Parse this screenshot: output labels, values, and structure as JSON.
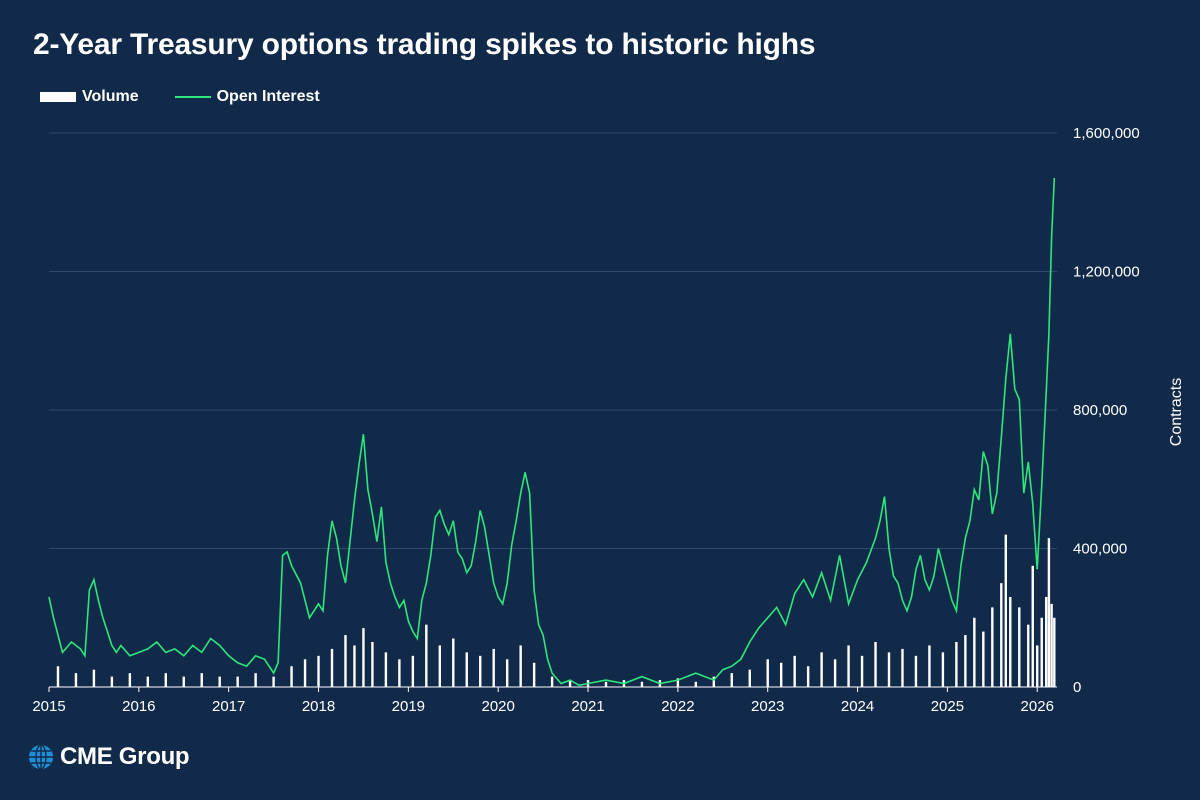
{
  "title": "2-Year Treasury options trading spikes to historic highs",
  "legend": {
    "volume": "Volume",
    "open_interest": "Open Interest"
  },
  "logo": {
    "text": "CME Group",
    "icon": "globe-icon"
  },
  "colors": {
    "background": "#122a4a",
    "volume": "#ffffff",
    "open_interest": "#2ee67a",
    "grid": "#2f4a6e"
  },
  "chart_data": {
    "type": "line",
    "title": "2-Year Treasury options trading spikes to historic highs",
    "xlabel": "",
    "ylabel": "Contracts",
    "x_ticks": [
      "2015",
      "2016",
      "2017",
      "2018",
      "2019",
      "2020",
      "2021",
      "2022",
      "2023",
      "2024",
      "2025",
      "2026"
    ],
    "xlim": [
      2015.0,
      2026.22
    ],
    "ylim": [
      0,
      1600000
    ],
    "y_ticks": [
      0,
      400000,
      800000,
      1200000,
      1600000
    ],
    "y_tick_labels": [
      "0",
      "400,000",
      "800,000",
      "1,200,000",
      "1,600,000"
    ],
    "y_axis_side": "right",
    "grid": true,
    "legend_position": "top-left",
    "series": [
      {
        "name": "Open Interest",
        "kind": "line",
        "x": [
          2015.0,
          2015.05,
          2015.1,
          2015.15,
          2015.25,
          2015.3,
          2015.35,
          2015.4,
          2015.45,
          2015.5,
          2015.55,
          2015.6,
          2015.65,
          2015.7,
          2015.75,
          2015.8,
          2015.9,
          2016.0,
          2016.1,
          2016.2,
          2016.3,
          2016.4,
          2016.5,
          2016.6,
          2016.7,
          2016.8,
          2016.9,
          2017.0,
          2017.1,
          2017.2,
          2017.3,
          2017.4,
          2017.5,
          2017.55,
          2017.6,
          2017.65,
          2017.7,
          2017.8,
          2017.9,
          2018.0,
          2018.05,
          2018.1,
          2018.15,
          2018.2,
          2018.25,
          2018.3,
          2018.35,
          2018.4,
          2018.45,
          2018.5,
          2018.55,
          2018.6,
          2018.65,
          2018.7,
          2018.75,
          2018.8,
          2018.85,
          2018.9,
          2018.95,
          2019.0,
          2019.05,
          2019.1,
          2019.15,
          2019.2,
          2019.25,
          2019.3,
          2019.35,
          2019.4,
          2019.45,
          2019.5,
          2019.55,
          2019.6,
          2019.65,
          2019.7,
          2019.75,
          2019.8,
          2019.85,
          2019.9,
          2019.95,
          2020.0,
          2020.05,
          2020.1,
          2020.15,
          2020.2,
          2020.25,
          2020.3,
          2020.35,
          2020.4,
          2020.45,
          2020.5,
          2020.55,
          2020.6,
          2020.7,
          2020.8,
          2020.9,
          2021.0,
          2021.2,
          2021.4,
          2021.6,
          2021.8,
          2022.0,
          2022.2,
          2022.4,
          2022.5,
          2022.6,
          2022.7,
          2022.8,
          2022.9,
          2023.0,
          2023.1,
          2023.2,
          2023.3,
          2023.4,
          2023.5,
          2023.6,
          2023.7,
          2023.8,
          2023.9,
          2024.0,
          2024.1,
          2024.2,
          2024.25,
          2024.3,
          2024.35,
          2024.4,
          2024.45,
          2024.5,
          2024.55,
          2024.6,
          2024.65,
          2024.7,
          2024.75,
          2024.8,
          2024.85,
          2024.9,
          2024.95,
          2025.0,
          2025.05,
          2025.1,
          2025.15,
          2025.2,
          2025.25,
          2025.3,
          2025.35,
          2025.4,
          2025.45,
          2025.5,
          2025.55,
          2025.6,
          2025.65,
          2025.7,
          2025.75,
          2025.8,
          2025.85,
          2025.9,
          2025.95,
          2026.0,
          2026.05,
          2026.1,
          2026.13,
          2026.16,
          2026.19
        ],
        "values": [
          260000,
          200000,
          150000,
          100000,
          130000,
          120000,
          110000,
          90000,
          280000,
          310000,
          250000,
          200000,
          160000,
          120000,
          100000,
          120000,
          90000,
          100000,
          110000,
          130000,
          100000,
          110000,
          90000,
          120000,
          100000,
          140000,
          120000,
          90000,
          70000,
          60000,
          90000,
          80000,
          40000,
          70000,
          380000,
          390000,
          350000,
          300000,
          200000,
          240000,
          220000,
          380000,
          480000,
          430000,
          350000,
          300000,
          420000,
          540000,
          640000,
          730000,
          570000,
          500000,
          420000,
          520000,
          360000,
          300000,
          260000,
          230000,
          250000,
          190000,
          160000,
          140000,
          250000,
          300000,
          380000,
          490000,
          510000,
          470000,
          440000,
          480000,
          390000,
          370000,
          330000,
          350000,
          420000,
          510000,
          460000,
          380000,
          300000,
          260000,
          240000,
          300000,
          410000,
          480000,
          560000,
          620000,
          560000,
          280000,
          180000,
          150000,
          80000,
          40000,
          10000,
          20000,
          5000,
          10000,
          20000,
          10000,
          30000,
          10000,
          20000,
          40000,
          20000,
          50000,
          60000,
          80000,
          130000,
          170000,
          200000,
          230000,
          180000,
          270000,
          310000,
          260000,
          330000,
          250000,
          380000,
          240000,
          310000,
          360000,
          430000,
          480000,
          550000,
          400000,
          320000,
          300000,
          250000,
          220000,
          260000,
          340000,
          380000,
          310000,
          280000,
          320000,
          400000,
          350000,
          300000,
          250000,
          220000,
          350000,
          430000,
          480000,
          570000,
          540000,
          680000,
          640000,
          500000,
          560000,
          720000,
          890000,
          1020000,
          860000,
          830000,
          560000,
          650000,
          530000,
          340000,
          580000,
          850000,
          1020000,
          1300000,
          1470000
        ]
      },
      {
        "name": "Volume",
        "kind": "bar",
        "x": [
          2015.1,
          2015.3,
          2015.5,
          2015.7,
          2015.9,
          2016.1,
          2016.3,
          2016.5,
          2016.7,
          2016.9,
          2017.1,
          2017.3,
          2017.5,
          2017.7,
          2017.85,
          2018.0,
          2018.15,
          2018.3,
          2018.4,
          2018.5,
          2018.6,
          2018.75,
          2018.9,
          2019.05,
          2019.2,
          2019.35,
          2019.5,
          2019.65,
          2019.8,
          2019.95,
          2020.1,
          2020.25,
          2020.4,
          2020.6,
          2020.8,
          2021.0,
          2021.2,
          2021.4,
          2021.6,
          2021.8,
          2022.0,
          2022.2,
          2022.4,
          2022.6,
          2022.8,
          2023.0,
          2023.15,
          2023.3,
          2023.45,
          2023.6,
          2023.75,
          2023.9,
          2024.05,
          2024.2,
          2024.35,
          2024.5,
          2024.65,
          2024.8,
          2024.95,
          2025.1,
          2025.2,
          2025.3,
          2025.4,
          2025.5,
          2025.6,
          2025.65,
          2025.7,
          2025.8,
          2025.9,
          2025.95,
          2026.0,
          2026.05,
          2026.1,
          2026.13,
          2026.16,
          2026.19
        ],
        "values": [
          60000,
          40000,
          50000,
          30000,
          40000,
          30000,
          40000,
          30000,
          40000,
          30000,
          30000,
          40000,
          30000,
          60000,
          80000,
          90000,
          110000,
          150000,
          120000,
          170000,
          130000,
          100000,
          80000,
          90000,
          180000,
          120000,
          140000,
          100000,
          90000,
          110000,
          80000,
          120000,
          70000,
          30000,
          20000,
          20000,
          15000,
          20000,
          15000,
          20000,
          25000,
          15000,
          30000,
          40000,
          50000,
          80000,
          70000,
          90000,
          60000,
          100000,
          80000,
          120000,
          90000,
          130000,
          100000,
          110000,
          90000,
          120000,
          100000,
          130000,
          150000,
          200000,
          160000,
          230000,
          300000,
          440000,
          260000,
          230000,
          180000,
          350000,
          120000,
          200000,
          260000,
          430000,
          240000,
          200000
        ]
      }
    ]
  }
}
